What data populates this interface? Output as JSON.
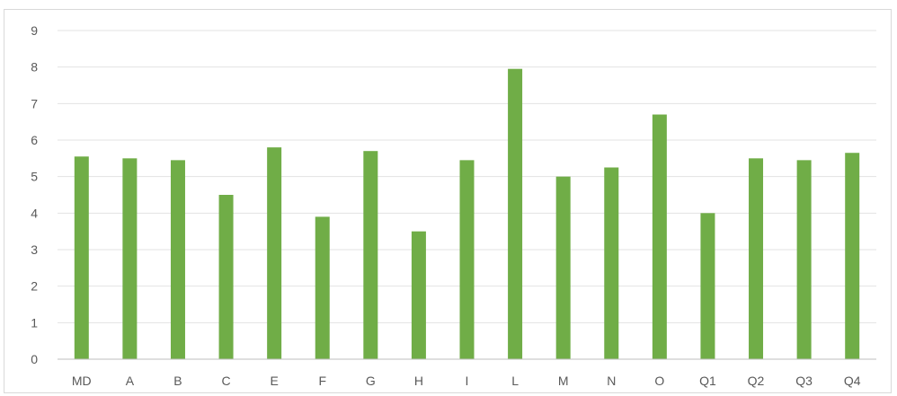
{
  "chart_data": {
    "type": "bar",
    "title": "",
    "xlabel": "",
    "ylabel": "",
    "categories": [
      "MD",
      "A",
      "B",
      "C",
      "E",
      "F",
      "G",
      "H",
      "I",
      "L",
      "M",
      "N",
      "O",
      "Q1",
      "Q2",
      "Q3",
      "Q4"
    ],
    "values": [
      5.55,
      5.5,
      5.45,
      4.5,
      5.8,
      3.9,
      5.7,
      3.5,
      5.45,
      7.95,
      5.0,
      5.25,
      6.7,
      4.0,
      5.5,
      5.45,
      5.65
    ],
    "ylim": [
      0,
      9
    ],
    "yticks": [
      0,
      1,
      2,
      3,
      4,
      5,
      6,
      7,
      8,
      9
    ],
    "grid": true,
    "legend": "none",
    "bar_color": "#70ad47"
  }
}
